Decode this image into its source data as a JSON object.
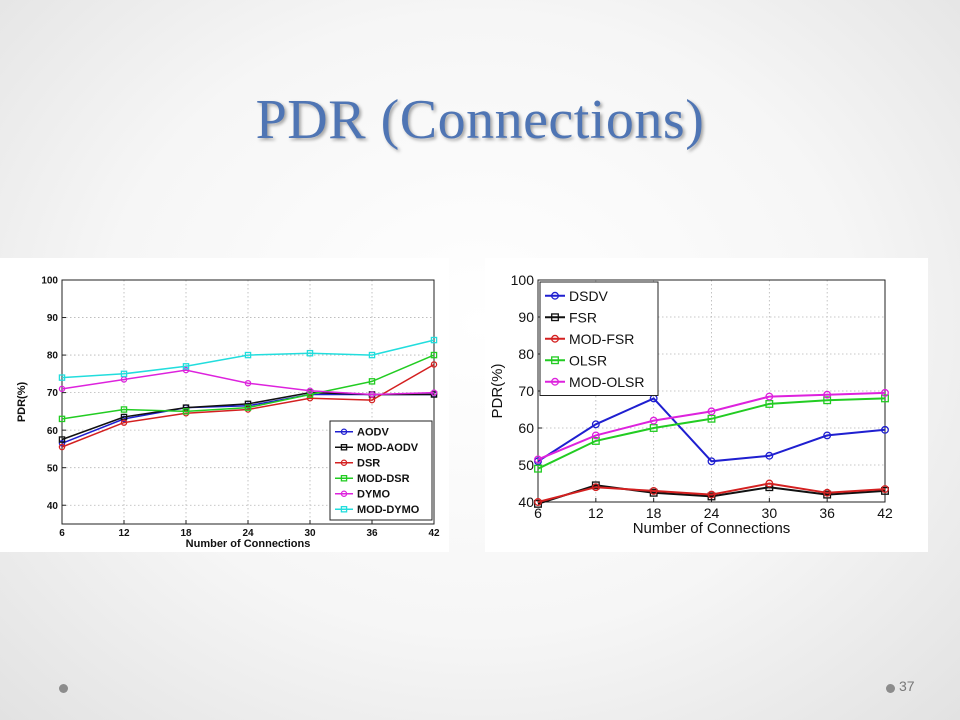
{
  "slide": {
    "title": "PDR (Connections)",
    "page_number": "37"
  },
  "chart_data": [
    {
      "type": "line",
      "title": "",
      "xlabel": "Number of Connections",
      "ylabel": "PDR(%)",
      "x": [
        6,
        12,
        18,
        24,
        30,
        36,
        42
      ],
      "xlim": [
        6,
        42
      ],
      "ylim": [
        35,
        100
      ],
      "yticks": [
        40,
        50,
        60,
        70,
        80,
        90,
        100
      ],
      "grid": true,
      "legend_position": "bottom-right",
      "series": [
        {
          "name": "AODV",
          "color": "#1f1fd0",
          "marker": "circle",
          "values": [
            56.5,
            63,
            66,
            66.5,
            69.5,
            69.5,
            69.5
          ]
        },
        {
          "name": "MOD-AODV",
          "color": "#111111",
          "marker": "square",
          "values": [
            57.5,
            63.5,
            66,
            67,
            70,
            69.5,
            69.5
          ]
        },
        {
          "name": "DSR",
          "color": "#d42020",
          "marker": "circle",
          "values": [
            55.5,
            62,
            64.5,
            65.5,
            68.5,
            68,
            77.5
          ]
        },
        {
          "name": "MOD-DSR",
          "color": "#22cc22",
          "marker": "square",
          "values": [
            63,
            65.5,
            65,
            66,
            69.5,
            73,
            80
          ]
        },
        {
          "name": "DYMO",
          "color": "#dd22dd",
          "marker": "circle",
          "values": [
            71,
            73.5,
            76,
            72.5,
            70.5,
            69.5,
            70
          ]
        },
        {
          "name": "MOD-DYMO",
          "color": "#22dddd",
          "marker": "square",
          "values": [
            74,
            75,
            77,
            80,
            80.5,
            80,
            84
          ]
        }
      ]
    },
    {
      "type": "line",
      "title": "",
      "xlabel": "Number of Connections",
      "ylabel": "PDR(%)",
      "x": [
        6,
        12,
        18,
        24,
        30,
        36,
        42
      ],
      "xlim": [
        6,
        42
      ],
      "ylim": [
        40,
        100
      ],
      "yticks": [
        40,
        50,
        60,
        70,
        80,
        90,
        100
      ],
      "grid": true,
      "legend_position": "top-left",
      "series": [
        {
          "name": "DSDV",
          "color": "#1f1fd0",
          "marker": "circle",
          "values": [
            51,
            61,
            68,
            51,
            52.5,
            58,
            59.5
          ]
        },
        {
          "name": "FSR",
          "color": "#111111",
          "marker": "square",
          "values": [
            39.5,
            44.5,
            42.5,
            41.5,
            44,
            42,
            43
          ]
        },
        {
          "name": "MOD-FSR",
          "color": "#d42020",
          "marker": "circle",
          "values": [
            40,
            44,
            43,
            42,
            45,
            42.5,
            43.5
          ]
        },
        {
          "name": "OLSR",
          "color": "#22cc22",
          "marker": "square",
          "values": [
            49,
            56.5,
            60,
            62.5,
            66.5,
            67.5,
            68
          ]
        },
        {
          "name": "MOD-OLSR",
          "color": "#dd22dd",
          "marker": "circle",
          "values": [
            51.5,
            58,
            62,
            64.5,
            68.5,
            69,
            69.5
          ]
        }
      ]
    }
  ]
}
